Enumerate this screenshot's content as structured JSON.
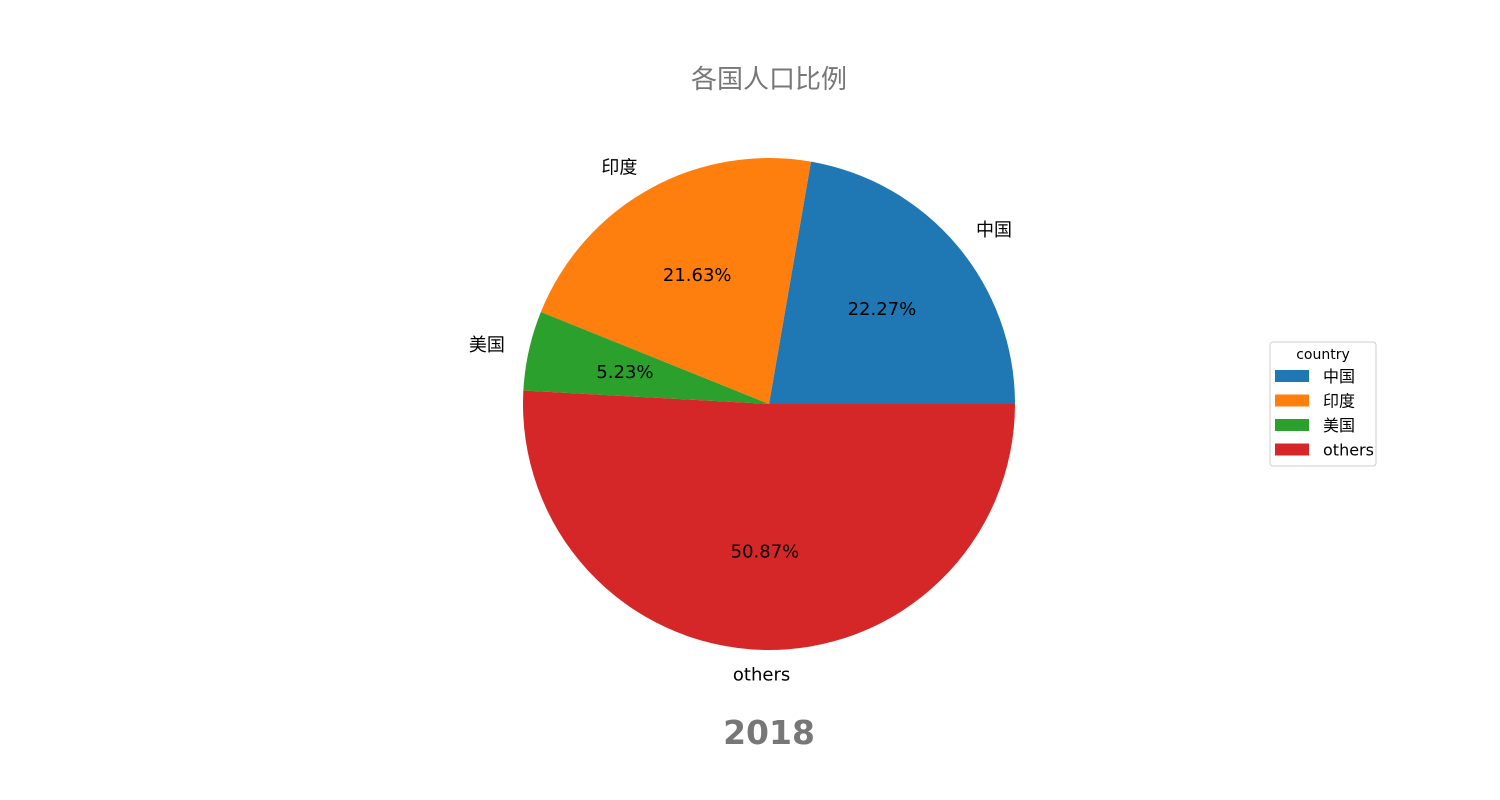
{
  "chart_data": {
    "type": "pie",
    "title": "各国人口比例",
    "annotation": "2018",
    "categories": [
      "中国",
      "印度",
      "美国",
      "others"
    ],
    "values": [
      22.27,
      21.63,
      5.23,
      50.87
    ],
    "percent_labels": [
      "22.27%",
      "21.63%",
      "5.23%",
      "50.87%"
    ],
    "colors": [
      "#1f77b4",
      "#ff7f0e",
      "#2ca02c",
      "#d62728"
    ],
    "legend": {
      "title": "country",
      "placement": "right",
      "entries": [
        "中国",
        "印度",
        "美国",
        "others"
      ]
    },
    "start_angle_deg": 0,
    "direction": "counterclockwise"
  }
}
